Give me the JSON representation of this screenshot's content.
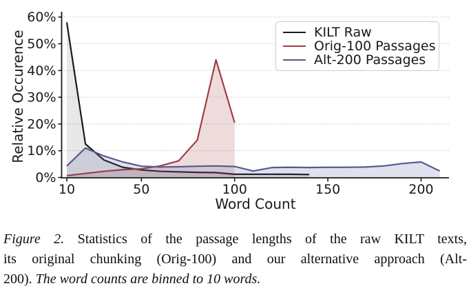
{
  "chart_data": {
    "type": "line",
    "title": "",
    "xlabel": "Word Count",
    "ylabel": "Relative Occurence",
    "x_ticks": [
      10,
      50,
      100,
      150,
      200
    ],
    "y_tick_labels": [
      "0%",
      "10%",
      "20%",
      "30%",
      "40%",
      "50%",
      "60%"
    ],
    "xlim": [
      7,
      214
    ],
    "ylim": [
      0,
      62
    ],
    "grid": "horizontal dotted",
    "legend_position": "upper right",
    "bin_size_words": 10,
    "series": [
      {
        "name": "KILT Raw",
        "color": "#1a1a1a",
        "fill_opacity": 0.1,
        "x": [
          10,
          20,
          30,
          40,
          50,
          60,
          70,
          80,
          90,
          100,
          110,
          120,
          130,
          140
        ],
        "values": [
          58,
          12.5,
          6.5,
          3.8,
          2.8,
          2.3,
          2.1,
          1.9,
          1.8,
          1.2,
          1.2,
          1.2,
          1.2,
          1.1
        ]
      },
      {
        "name": "Orig-100 Passages",
        "color": "#a23c42",
        "fill_opacity": 0.18,
        "x": [
          10,
          20,
          30,
          40,
          50,
          60,
          70,
          80,
          90,
          100
        ],
        "values": [
          0.7,
          1.5,
          2.3,
          2.9,
          3.2,
          4.3,
          6.2,
          14,
          44,
          20.5
        ]
      },
      {
        "name": "Alt-200 Passages",
        "color": "#555a94",
        "fill_opacity": 0.18,
        "x": [
          10,
          20,
          30,
          40,
          50,
          60,
          70,
          80,
          90,
          100,
          110,
          120,
          130,
          140,
          150,
          160,
          170,
          180,
          190,
          200,
          210
        ],
        "values": [
          4.3,
          11,
          8,
          5.8,
          4.2,
          3.9,
          4.0,
          4.2,
          4.3,
          4.1,
          2.4,
          3.7,
          3.8,
          3.7,
          3.8,
          3.8,
          3.9,
          4.3,
          5.2,
          5.8,
          2.4
        ]
      }
    ]
  },
  "caption": {
    "line1_italic": "Figure 2.",
    "line1_rest": "Statistics of the passage lengths of the raw KILT texts,",
    "line2": "its original chunking (Orig-100) and our alternative approach (Alt-",
    "line3_start": "200).",
    "line3_italic": "The word counts are binned to 10 words."
  }
}
